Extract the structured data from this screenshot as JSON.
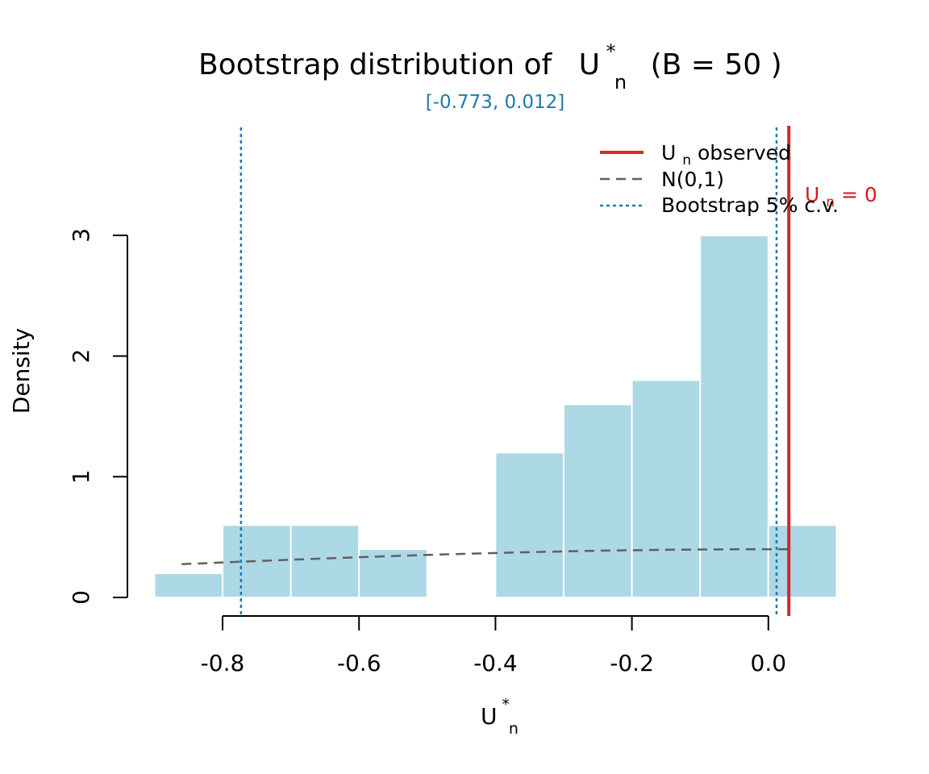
{
  "colors": {
    "bar_fill": "#add8e6",
    "bar_border": "#ffffff",
    "observed": "#d62728",
    "normal": "#606060",
    "critical": "#1f78b4"
  },
  "chart_data": {
    "type": "bar",
    "title": {
      "prefix": "Bootstrap distribution of",
      "symbol": "U",
      "subscript": "n",
      "superscript": "*",
      "suffix": "(B =  50 )"
    },
    "subtitle": "[-0.773, 0.012]",
    "xlabel": {
      "symbol": "U",
      "subscript": "n",
      "superscript": "*"
    },
    "ylabel": "Density",
    "xlim": [
      -0.9,
      0.1
    ],
    "ylim": [
      0,
      3
    ],
    "x_ticks": [
      -0.8,
      -0.6,
      -0.4,
      -0.2,
      0.0
    ],
    "x_tick_labels": [
      "-0.8",
      "-0.6",
      "-0.4",
      "-0.2",
      "0.0"
    ],
    "y_ticks": [
      0,
      1,
      2,
      3
    ],
    "y_tick_labels": [
      "0",
      "1",
      "2",
      "3"
    ],
    "bins": [
      {
        "x0": -0.9,
        "x1": -0.8,
        "density": 0.2
      },
      {
        "x0": -0.8,
        "x1": -0.7,
        "density": 0.6
      },
      {
        "x0": -0.7,
        "x1": -0.6,
        "density": 0.6
      },
      {
        "x0": -0.6,
        "x1": -0.5,
        "density": 0.4
      },
      {
        "x0": -0.5,
        "x1": -0.4,
        "density": 0.0
      },
      {
        "x0": -0.4,
        "x1": -0.3,
        "density": 1.2
      },
      {
        "x0": -0.3,
        "x1": -0.2,
        "density": 1.6
      },
      {
        "x0": -0.2,
        "x1": -0.1,
        "density": 1.8
      },
      {
        "x0": -0.1,
        "x1": 0.0,
        "density": 3.0
      },
      {
        "x0": 0.0,
        "x1": 0.1,
        "density": 0.6
      }
    ],
    "normal_curve": {
      "name": "N(0,1)",
      "x_from": -0.86,
      "x_to": 0.03
    },
    "observed": {
      "x": 0.03,
      "label": "U",
      "label_sub": "n",
      "label_rest": " = 0"
    },
    "critical_values": [
      -0.773,
      0.012
    ],
    "legend": {
      "position": "top-right",
      "entries": [
        {
          "key": "observed",
          "label_symbol": "U",
          "label_sub": "n",
          "label_rest": " observed"
        },
        {
          "key": "normal",
          "label": "N(0,1)"
        },
        {
          "key": "critical",
          "label": "Bootstrap 5% c.v."
        }
      ]
    }
  }
}
